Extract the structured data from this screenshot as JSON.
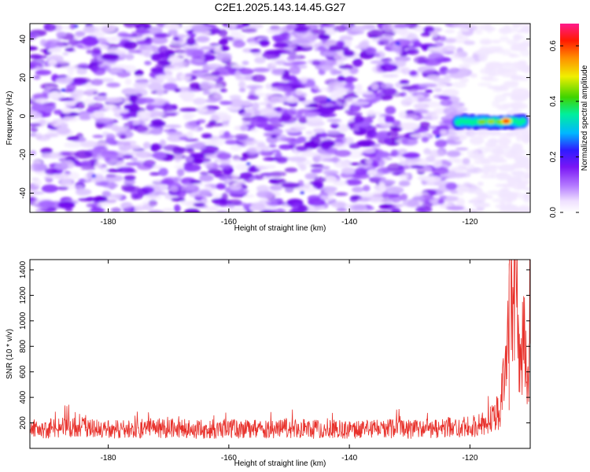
{
  "title": "C2E1.2025.143.14.45.G27",
  "chart_data": [
    {
      "type": "heatmap",
      "title": "C2E1.2025.143.14.45.G27",
      "xlabel": "Height of straight line (km)",
      "ylabel": "Frequency (Hz)",
      "xlim": [
        -193,
        -110
      ],
      "ylim": [
        -50,
        48
      ],
      "xticks": [
        -180,
        -160,
        -140,
        -120
      ],
      "yticks": [
        -40,
        -20,
        0,
        20,
        40
      ],
      "colorbar": {
        "label": "Normalized spectral amplitude",
        "range": [
          0.0,
          0.68
        ],
        "ticks": [
          "0.0",
          "0.2",
          "0.4",
          "0.6"
        ],
        "tick_values": [
          0.0,
          0.2,
          0.4,
          0.6
        ],
        "colormap": "rainbow (white at 0, violet, blue, cyan, green, yellow, orange, red, magenta at max)"
      },
      "background_level": 0.15,
      "signal": {
        "x_range": [
          -122,
          -111
        ],
        "frequency": -3,
        "peak_amplitude": 0.65,
        "peak_x": -114
      }
    },
    {
      "type": "line",
      "xlabel": "Height of straight line (km)",
      "ylabel": "SNR (10 * v/v)",
      "xlim": [
        -193,
        -110
      ],
      "ylim": [
        0,
        1480
      ],
      "xticks": [
        -180,
        -160,
        -140,
        -120
      ],
      "yticks": [
        200,
        400,
        600,
        800,
        1000,
        1200,
        1400
      ],
      "color": "#e8302a",
      "series": [
        {
          "x": [
            -193,
            -185,
            -180,
            -172,
            -165,
            -160,
            -155,
            -150,
            -145,
            -140,
            -135,
            -130,
            -125,
            -120,
            -117,
            -115,
            -114,
            -113.5,
            -113,
            -112.5,
            -112,
            -111.5,
            -111,
            -110.5,
            -110
          ],
          "values": [
            150,
            165,
            150,
            160,
            150,
            155,
            150,
            160,
            150,
            150,
            155,
            150,
            160,
            170,
            200,
            300,
            650,
            1450,
            1100,
            1300,
            900,
            600,
            1200,
            500,
            800
          ]
        }
      ],
      "peak": {
        "x": -113.5,
        "y": 1450
      },
      "grid": false
    }
  ]
}
